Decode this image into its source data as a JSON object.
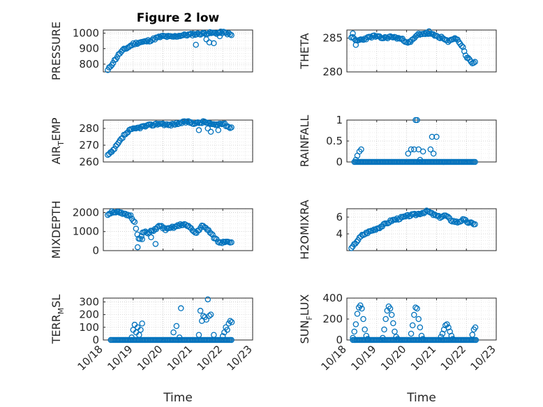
{
  "title": "Figure 2 low",
  "colors": {
    "marker": "#0072bd",
    "axis": "#262626",
    "grid": "#bdbdbd"
  },
  "chart_data": [
    {
      "type": "scatter",
      "ylabel": "PRESSURE",
      "ylim": [
        750,
        1020
      ],
      "yticks": [
        800,
        900,
        1000
      ],
      "title": "Figure 2 low",
      "grid": true,
      "xticks_shown": false,
      "seed": 11,
      "x": [
        18.15,
        18.25,
        18.4,
        18.55,
        18.7,
        18.85,
        19.0,
        19.2,
        19.4,
        19.6,
        19.8,
        20.0,
        20.3,
        20.6,
        20.9,
        21.2,
        21.5,
        21.8,
        22.0,
        22.2,
        22.3
      ],
      "y": [
        760,
        790,
        830,
        870,
        895,
        910,
        930,
        940,
        945,
        955,
        970,
        980,
        975,
        985,
        990,
        995,
        1000,
        1000,
        1005,
        995,
        985
      ],
      "outliers": [
        [
          21.1,
          925
        ],
        [
          21.45,
          960
        ],
        [
          21.55,
          940
        ],
        [
          21.7,
          935
        ],
        [
          21.9,
          980
        ]
      ]
    },
    {
      "type": "scatter",
      "ylabel": "THETA",
      "ylim": [
        280,
        286.2
      ],
      "yticks": [
        280,
        285
      ],
      "grid": true,
      "xticks_shown": false,
      "seed": 23,
      "x": [
        18.15,
        18.3,
        18.6,
        18.9,
        19.2,
        19.5,
        19.8,
        20.1,
        20.4,
        20.7,
        21.0,
        21.2,
        21.4,
        21.6,
        21.75,
        21.9,
        22.0,
        22.1,
        22.2,
        22.3
      ],
      "y": [
        285.2,
        284.6,
        284.9,
        285.3,
        285.0,
        285.2,
        284.9,
        284.3,
        285.6,
        285.7,
        285.3,
        285.0,
        284.4,
        285.1,
        284.5,
        283.5,
        282.2,
        281.8,
        281.3,
        281.5
      ],
      "outliers": [
        [
          18.2,
          285.7
        ],
        [
          18.3,
          284.0
        ],
        [
          20.75,
          286.0
        ]
      ]
    },
    {
      "type": "scatter",
      "ylabel": "AIR_TEMP",
      "ylabel_main": "AIR",
      "ylabel_sub": "T",
      "ylabel_tail": "EMP",
      "ylim": [
        260,
        285
      ],
      "yticks": [
        260,
        270,
        280
      ],
      "grid": true,
      "xticks_shown": false,
      "seed": 37,
      "x": [
        18.15,
        18.3,
        18.5,
        18.7,
        18.9,
        19.1,
        19.3,
        19.6,
        19.9,
        20.2,
        20.5,
        20.8,
        21.1,
        21.4,
        21.7,
        22.0,
        22.2,
        22.3
      ],
      "y": [
        264,
        266,
        271,
        276,
        279,
        280,
        281,
        282,
        283,
        282,
        283,
        284,
        283,
        284,
        282,
        283,
        281,
        280
      ],
      "outliers": [
        [
          21.2,
          279
        ],
        [
          21.5,
          280
        ],
        [
          21.6,
          278
        ],
        [
          21.85,
          279
        ]
      ]
    },
    {
      "type": "scatter",
      "ylabel": "RAINFALL",
      "ylim": [
        0,
        1
      ],
      "yticks": [
        0,
        0.5,
        1
      ],
      "ytick_labels": [
        "0",
        "0.5",
        "1"
      ],
      "grid": true,
      "xticks_shown": false,
      "seed": 0,
      "x": [
        18.3,
        18.35,
        18.42,
        18.48,
        20.05,
        20.15,
        20.25,
        20.3,
        20.35,
        20.4,
        20.45,
        20.55,
        20.8,
        20.85,
        20.9,
        21.0
      ],
      "y": [
        0.05,
        0.15,
        0.25,
        0.3,
        0.2,
        0.3,
        0.3,
        1.0,
        1.0,
        0.3,
        0.05,
        0.25,
        0.3,
        0.6,
        0.2,
        0.6
      ],
      "baseline": {
        "value": 0,
        "from": 18.25,
        "to": 22.3,
        "step": 0.04
      }
    },
    {
      "type": "scatter",
      "ylabel": "MIXDEPTH",
      "ylim": [
        0,
        2200
      ],
      "yticks": [
        0,
        1000,
        2000
      ],
      "grid": true,
      "xticks_shown": false,
      "seed": 51,
      "x": [
        18.15,
        18.3,
        18.5,
        18.7,
        18.9,
        19.05,
        19.2,
        19.35,
        19.5,
        19.7,
        19.9,
        20.1,
        20.3,
        20.5,
        20.7,
        20.9,
        21.1,
        21.3,
        21.5,
        21.7,
        21.9,
        22.1,
        22.3
      ],
      "y": [
        1900,
        2050,
        2000,
        1900,
        1850,
        1500,
        500,
        1000,
        900,
        1100,
        1300,
        1100,
        1200,
        1300,
        1400,
        1200,
        900,
        1300,
        1100,
        700,
        400,
        500,
        450
      ],
      "outliers": [
        [
          19.15,
          180
        ],
        [
          19.3,
          600
        ],
        [
          19.6,
          700
        ],
        [
          19.75,
          350
        ]
      ]
    },
    {
      "type": "scatter",
      "ylabel": "H2OMIXRA",
      "ylim": [
        2,
        7
      ],
      "yticks": [
        4,
        6
      ],
      "grid": true,
      "xticks_shown": false,
      "seed": 67,
      "x": [
        18.15,
        18.3,
        18.5,
        18.7,
        18.9,
        19.1,
        19.3,
        19.5,
        19.7,
        19.9,
        20.1,
        20.3,
        20.5,
        20.7,
        20.9,
        21.1,
        21.3,
        21.5,
        21.7,
        21.9,
        22.1,
        22.3
      ],
      "y": [
        2.2,
        3.0,
        3.8,
        4.2,
        4.5,
        4.8,
        5.2,
        5.6,
        5.8,
        6.0,
        6.2,
        6.3,
        6.5,
        6.7,
        6.3,
        6.0,
        6.2,
        5.6,
        5.4,
        5.7,
        5.3,
        5.2
      ]
    },
    {
      "type": "scatter",
      "ylabel": "TERR_MSL",
      "ylabel_main": "TERR",
      "ylabel_sub": "M",
      "ylabel_tail": "SL",
      "ylim": [
        0,
        330
      ],
      "yticks": [
        0,
        100,
        200,
        300
      ],
      "grid": true,
      "xticks_shown": true,
      "seed": 0,
      "x": [
        18.95,
        19.0,
        19.05,
        19.1,
        19.15,
        19.2,
        19.25,
        19.3,
        20.35,
        20.45,
        20.55,
        20.6,
        21.2,
        21.25,
        21.3,
        21.35,
        21.4,
        21.45,
        21.5,
        21.55,
        21.6,
        21.7,
        22.0,
        22.05,
        22.1,
        22.15,
        22.2,
        22.25,
        22.3
      ],
      "y": [
        20,
        80,
        120,
        60,
        100,
        40,
        80,
        130,
        60,
        110,
        20,
        250,
        40,
        230,
        150,
        190,
        180,
        160,
        320,
        190,
        200,
        40,
        30,
        60,
        100,
        80,
        130,
        150,
        140
      ],
      "baseline": {
        "value": 0,
        "from": 18.25,
        "to": 22.3,
        "step": 0.04
      }
    },
    {
      "type": "scatter",
      "ylabel": "SUN_FLUX",
      "ylabel_main": "SUN",
      "ylabel_sub": "F",
      "ylabel_tail": "LUX",
      "ylim": [
        0,
        400
      ],
      "yticks": [
        0,
        200,
        400
      ],
      "grid": true,
      "xticks_shown": true,
      "seed": 0,
      "x": [
        18.2,
        18.25,
        18.3,
        18.35,
        18.4,
        18.45,
        18.5,
        18.55,
        18.6,
        18.65,
        18.7,
        19.2,
        19.25,
        19.3,
        19.35,
        19.4,
        19.45,
        19.5,
        19.55,
        19.6,
        19.65,
        19.7,
        20.15,
        20.2,
        20.25,
        20.3,
        20.35,
        20.4,
        20.45,
        20.5,
        20.55,
        21.15,
        21.2,
        21.25,
        21.3,
        21.35,
        21.4,
        21.45,
        21.5,
        21.55,
        22.2,
        22.25,
        22.3
      ],
      "y": [
        20,
        80,
        150,
        250,
        310,
        330,
        300,
        200,
        100,
        40,
        10,
        20,
        100,
        200,
        280,
        320,
        300,
        240,
        160,
        80,
        30,
        10,
        60,
        140,
        240,
        310,
        300,
        200,
        120,
        40,
        10,
        30,
        60,
        100,
        140,
        150,
        120,
        80,
        40,
        10,
        50,
        100,
        120
      ],
      "baseline": {
        "value": 0,
        "from": 18.2,
        "to": 22.35,
        "step": 0.04
      }
    }
  ],
  "x_axis": {
    "xlim": [
      18,
      23
    ],
    "ticks": [
      18,
      19,
      20,
      21,
      22,
      23
    ],
    "tick_labels": [
      "10/18",
      "10/19",
      "10/20",
      "10/21",
      "10/22",
      "10/23"
    ],
    "xlabel": "Time"
  }
}
